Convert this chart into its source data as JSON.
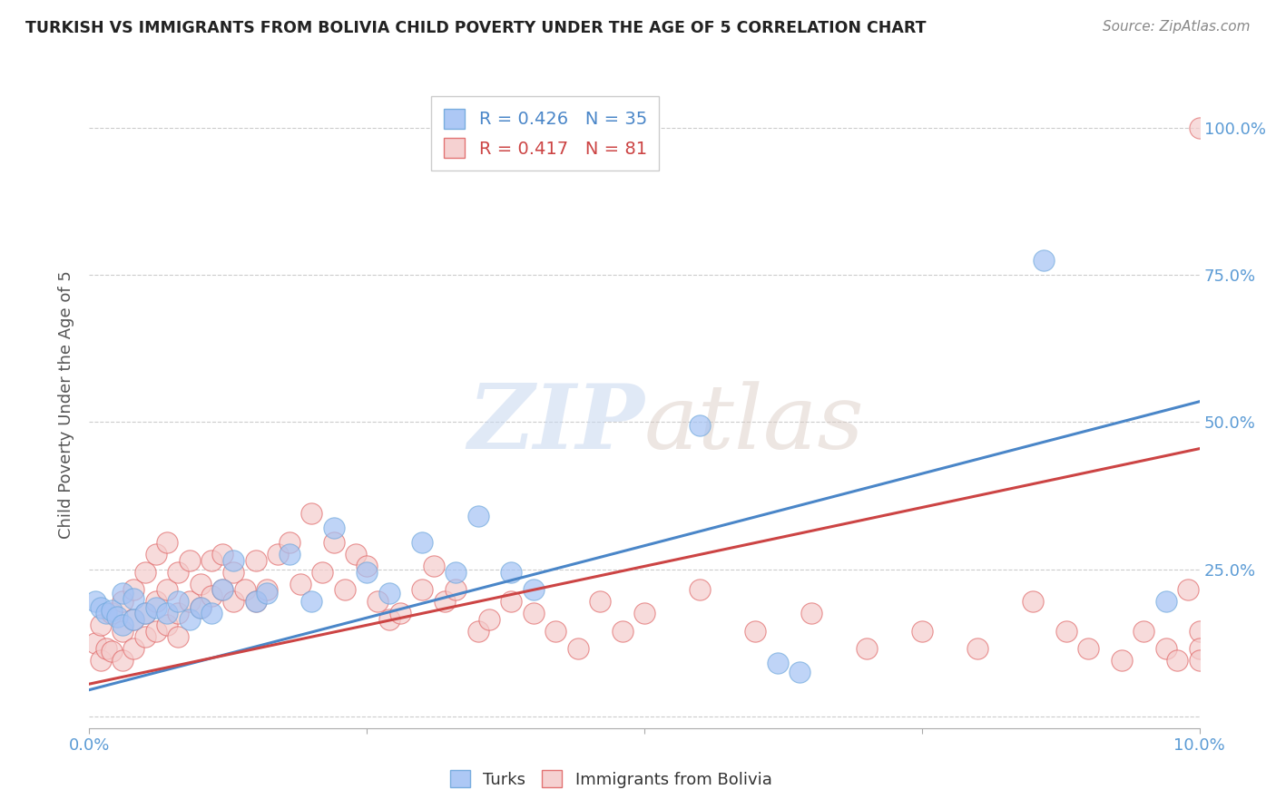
{
  "title": "TURKISH VS IMMIGRANTS FROM BOLIVIA CHILD POVERTY UNDER THE AGE OF 5 CORRELATION CHART",
  "source": "Source: ZipAtlas.com",
  "ylabel": "Child Poverty Under the Age of 5",
  "watermark_zip": "ZIP",
  "watermark_atlas": "atlas",
  "blue_R": "0.426",
  "blue_N": "35",
  "pink_R": "0.417",
  "pink_N": "81",
  "blue_color": "#a4c2f4",
  "pink_color": "#f4cccc",
  "blue_edge_color": "#6fa8dc",
  "pink_edge_color": "#e06666",
  "blue_line_color": "#4a86c8",
  "pink_line_color": "#cc4444",
  "xlim": [
    0.0,
    0.1
  ],
  "ylim": [
    -0.02,
    1.08
  ],
  "x_tick_positions": [
    0.0,
    0.025,
    0.05,
    0.075,
    0.1
  ],
  "x_tick_labels": [
    "0.0%",
    "",
    "",
    "",
    "10.0%"
  ],
  "y_tick_positions": [
    0.0,
    0.25,
    0.5,
    0.75,
    1.0
  ],
  "y_tick_labels": [
    "",
    "25.0%",
    "50.0%",
    "75.0%",
    "100.0%"
  ],
  "blue_scatter_x": [
    0.0005,
    0.001,
    0.0015,
    0.002,
    0.0025,
    0.003,
    0.003,
    0.004,
    0.004,
    0.005,
    0.006,
    0.007,
    0.008,
    0.009,
    0.01,
    0.011,
    0.012,
    0.013,
    0.015,
    0.016,
    0.018,
    0.02,
    0.022,
    0.025,
    0.027,
    0.03,
    0.033,
    0.035,
    0.038,
    0.04,
    0.055,
    0.062,
    0.064,
    0.086,
    0.097
  ],
  "blue_scatter_y": [
    0.195,
    0.185,
    0.175,
    0.18,
    0.17,
    0.155,
    0.21,
    0.165,
    0.2,
    0.175,
    0.185,
    0.175,
    0.195,
    0.165,
    0.185,
    0.175,
    0.215,
    0.265,
    0.195,
    0.21,
    0.275,
    0.195,
    0.32,
    0.245,
    0.21,
    0.295,
    0.245,
    0.34,
    0.245,
    0.215,
    0.495,
    0.09,
    0.075,
    0.775,
    0.195
  ],
  "pink_scatter_x": [
    0.0005,
    0.001,
    0.001,
    0.0015,
    0.002,
    0.002,
    0.003,
    0.003,
    0.003,
    0.004,
    0.004,
    0.004,
    0.005,
    0.005,
    0.005,
    0.006,
    0.006,
    0.006,
    0.007,
    0.007,
    0.007,
    0.008,
    0.008,
    0.008,
    0.009,
    0.009,
    0.01,
    0.01,
    0.011,
    0.011,
    0.012,
    0.012,
    0.013,
    0.013,
    0.014,
    0.015,
    0.015,
    0.016,
    0.017,
    0.018,
    0.019,
    0.02,
    0.021,
    0.022,
    0.023,
    0.024,
    0.025,
    0.026,
    0.027,
    0.028,
    0.03,
    0.031,
    0.032,
    0.033,
    0.035,
    0.036,
    0.038,
    0.04,
    0.042,
    0.044,
    0.046,
    0.048,
    0.05,
    0.055,
    0.06,
    0.065,
    0.07,
    0.075,
    0.08,
    0.085,
    0.088,
    0.09,
    0.093,
    0.095,
    0.097,
    0.098,
    0.099,
    0.1,
    0.1,
    0.1,
    0.1
  ],
  "pink_scatter_y": [
    0.125,
    0.095,
    0.155,
    0.115,
    0.11,
    0.175,
    0.095,
    0.145,
    0.195,
    0.115,
    0.165,
    0.215,
    0.135,
    0.175,
    0.245,
    0.145,
    0.195,
    0.275,
    0.155,
    0.215,
    0.295,
    0.135,
    0.175,
    0.245,
    0.195,
    0.265,
    0.185,
    0.225,
    0.205,
    0.265,
    0.215,
    0.275,
    0.195,
    0.245,
    0.215,
    0.195,
    0.265,
    0.215,
    0.275,
    0.295,
    0.225,
    0.345,
    0.245,
    0.295,
    0.215,
    0.275,
    0.255,
    0.195,
    0.165,
    0.175,
    0.215,
    0.255,
    0.195,
    0.215,
    0.145,
    0.165,
    0.195,
    0.175,
    0.145,
    0.115,
    0.195,
    0.145,
    0.175,
    0.215,
    0.145,
    0.175,
    0.115,
    0.145,
    0.115,
    0.195,
    0.145,
    0.115,
    0.095,
    0.145,
    0.115,
    0.095,
    0.215,
    0.145,
    0.115,
    0.095,
    1.0
  ],
  "blue_line_x": [
    0.0,
    0.1
  ],
  "blue_line_y": [
    0.045,
    0.535
  ],
  "pink_line_x": [
    0.0,
    0.1
  ],
  "pink_line_y": [
    0.055,
    0.455
  ]
}
